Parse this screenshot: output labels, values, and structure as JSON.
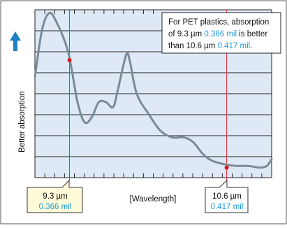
{
  "colors": {
    "plot_bg": "#dfe9f6",
    "curve": "#7a8a96",
    "marker_line": "#e0303c",
    "marker_dot": "#e01020",
    "callout_bg": "#fffbd8",
    "accent_blue": "#1e9bd7",
    "arrow_blue": "#1f7fc4",
    "grid": "#222222"
  },
  "icons": {
    "up_arrow": "up-arrow-icon"
  },
  "chart_data": {
    "type": "line",
    "title": "",
    "xlabel": "[Wavelength]",
    "ylabel": "Better absorption",
    "grid": true,
    "series": [
      {
        "values": [
          [
            0.0,
            0.6
          ],
          [
            0.03,
            0.88
          ],
          [
            0.06,
            0.98
          ],
          [
            0.09,
            0.93
          ],
          [
            0.14,
            0.75
          ],
          [
            0.18,
            0.45
          ],
          [
            0.21,
            0.33
          ],
          [
            0.24,
            0.36
          ],
          [
            0.27,
            0.45
          ],
          [
            0.3,
            0.45
          ],
          [
            0.33,
            0.42
          ],
          [
            0.35,
            0.52
          ],
          [
            0.385,
            0.73
          ],
          [
            0.4,
            0.7
          ],
          [
            0.43,
            0.5
          ],
          [
            0.48,
            0.38
          ],
          [
            0.53,
            0.28
          ],
          [
            0.58,
            0.24
          ],
          [
            0.63,
            0.24
          ],
          [
            0.67,
            0.21
          ],
          [
            0.71,
            0.14
          ],
          [
            0.75,
            0.1
          ],
          [
            0.8,
            0.08
          ],
          [
            0.85,
            0.07
          ],
          [
            0.9,
            0.07
          ],
          [
            0.95,
            0.06
          ],
          [
            0.98,
            0.07
          ],
          [
            1.0,
            0.11
          ]
        ]
      }
    ],
    "markers": [
      {
        "x": 0.146,
        "y": 0.7,
        "label_primary": "9.3 µm",
        "label_secondary": "0.366 mil"
      },
      {
        "x": 0.81,
        "y": 0.06,
        "label_primary": "10.6 µm",
        "label_secondary": "0.417 mil"
      }
    ],
    "annotation": {
      "line1": "For PET plastics, absorption",
      "line2_a": "of 9.3 µm ",
      "line2_b": "0.366 mil",
      "line2_c": " is better",
      "line3_a": "than 10.6 µm ",
      "line3_b": "0.417 mil",
      "line3_c": "."
    }
  }
}
